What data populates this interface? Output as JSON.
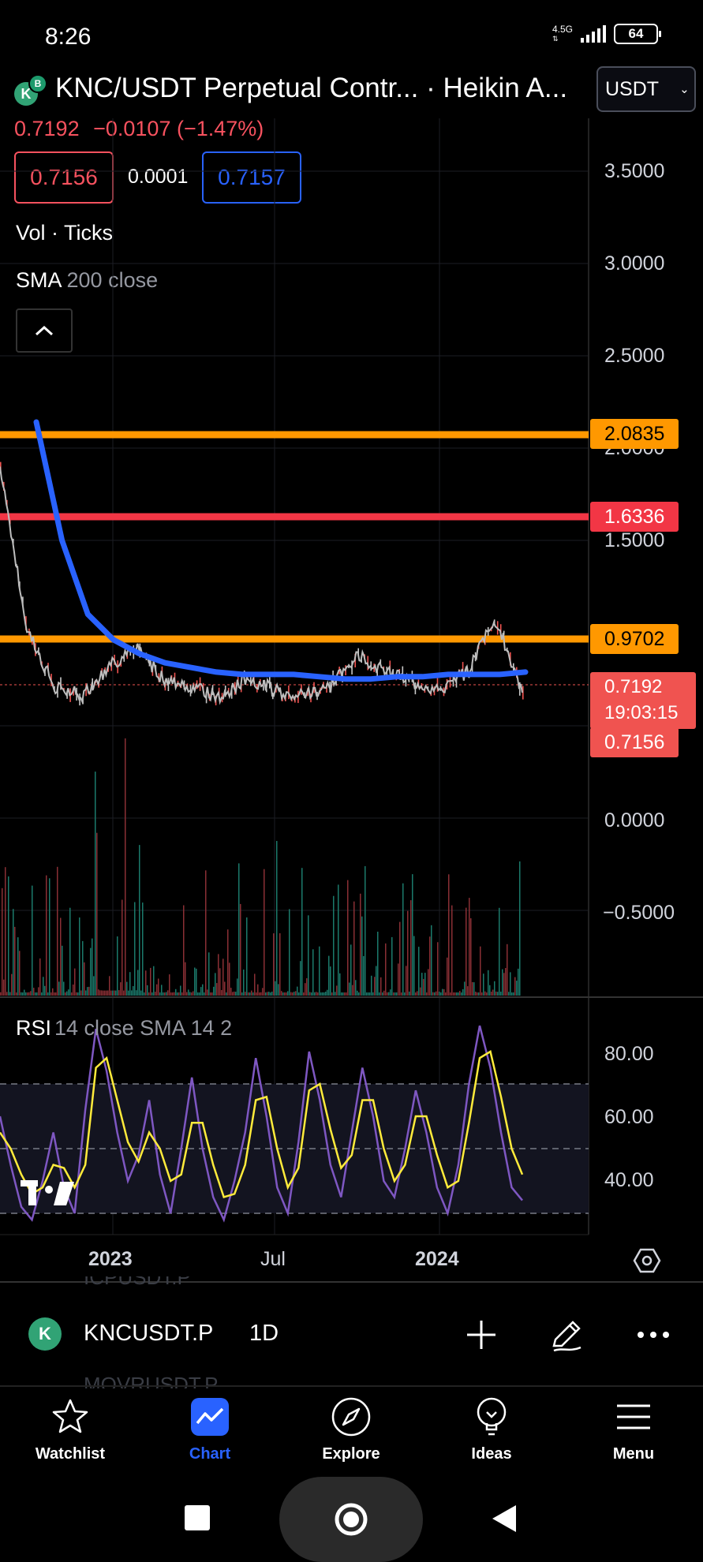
{
  "status_bar": {
    "time": "8:26",
    "network": "4.5G",
    "battery": "64"
  },
  "header": {
    "title": "KNC/USDT Perpetual Contr...  · Heikin A...",
    "currency": "USDT",
    "last_price": "0.7192",
    "change": "−0.0107 (−1.47%)",
    "bid": "0.7156",
    "spread": "0.0001",
    "ask": "0.7157"
  },
  "indicators": {
    "vol_label": "Vol · Ticks",
    "sma_name": "SMA",
    "sma_params": "200 close"
  },
  "price_scale": {
    "ticks": [
      "3.5000",
      "3.0000",
      "2.5000",
      "2.0000",
      "1.5000",
      "0.0000",
      "−0.5000"
    ],
    "level_badges": [
      {
        "value": "2.0835",
        "color": "#ff9800"
      },
      {
        "value": "1.6336",
        "color": "#f23645"
      },
      {
        "value": "0.9702",
        "color": "#ff9800"
      }
    ],
    "current": {
      "price": "0.7192",
      "countdown": "19:03:15"
    },
    "bid_badge": "0.7156"
  },
  "rsi": {
    "name": "RSI",
    "params": "14 close SMA 14 2",
    "ticks": [
      "80.00",
      "60.00",
      "40.00"
    ]
  },
  "time_axis": [
    "2023",
    "Jul",
    "2024"
  ],
  "chart_data": {
    "type": "line",
    "ylim": [
      0.6,
      2.1
    ],
    "horizontal_levels": [
      {
        "value": 2.0835,
        "color": "#ff9800"
      },
      {
        "value": 1.6336,
        "color": "#f23645"
      },
      {
        "value": 0.9702,
        "color": "#ff9800"
      }
    ],
    "x": [
      "2022-10",
      "2022-11",
      "2022-12",
      "2023-01",
      "2023-02",
      "2023-03",
      "2023-04",
      "2023-05",
      "2023-06",
      "2023-07",
      "2023-08",
      "2023-09",
      "2023-10",
      "2023-11",
      "2023-12",
      "2024-01",
      "2024-02",
      "2024-03",
      "2024-04",
      "2024-05"
    ],
    "series": [
      {
        "values": [
          1.9,
          1.0,
          0.75,
          0.72,
          0.85,
          0.92,
          0.78,
          0.76,
          0.7,
          0.8,
          0.74,
          0.72,
          0.76,
          0.9,
          0.82,
          0.78,
          0.74,
          0.82,
          1.07,
          0.72
        ],
        "color": "#c8c8c8"
      },
      {
        "name": "SMA 200 close",
        "values": [
          2.2,
          1.5,
          1.1,
          0.96,
          0.9,
          0.86,
          0.84,
          0.82,
          0.81,
          0.81,
          0.81,
          0.8,
          0.79,
          0.79,
          0.8,
          0.8,
          0.81,
          0.81,
          0.81,
          0.82
        ],
        "color": "#2962ff"
      }
    ],
    "rsi": {
      "ylim": [
        25,
        90
      ],
      "bands": [
        70,
        50,
        30
      ],
      "rsi_values": [
        60,
        45,
        32,
        28,
        40,
        55,
        38,
        30,
        62,
        87,
        74,
        55,
        40,
        48,
        65,
        42,
        30,
        50,
        72,
        50,
        35,
        28,
        40,
        55,
        78,
        60,
        38,
        30,
        52,
        80,
        65,
        45,
        35,
        55,
        75,
        60,
        40,
        35,
        50,
        68,
        55,
        38,
        30,
        45,
        70,
        88,
        75,
        55,
        38,
        34
      ],
      "sma_values": [
        55,
        50,
        42,
        36,
        38,
        45,
        44,
        38,
        45,
        75,
        78,
        65,
        52,
        46,
        55,
        50,
        40,
        42,
        58,
        58,
        45,
        35,
        36,
        45,
        65,
        66,
        50,
        38,
        44,
        68,
        70,
        56,
        44,
        48,
        65,
        65,
        50,
        40,
        45,
        60,
        60,
        48,
        38,
        40,
        58,
        78,
        80,
        66,
        50,
        42
      ]
    }
  },
  "symbol_bar": {
    "prev_symbol": "ICPUSDT.P",
    "symbol": "KNCUSDT.P",
    "timeframe": "1D",
    "next_symbol": "MOVRUSDT.P"
  },
  "nav": [
    {
      "label": "Watchlist",
      "icon": "star-icon"
    },
    {
      "label": "Chart",
      "icon": "chart-icon"
    },
    {
      "label": "Explore",
      "icon": "compass-icon"
    },
    {
      "label": "Ideas",
      "icon": "lightbulb-icon"
    },
    {
      "label": "Menu",
      "icon": "hamburger-icon"
    }
  ],
  "colors": {
    "accent": "#2962ff",
    "down": "#f7525f",
    "up": "#089981",
    "level_orange": "#ff9800",
    "level_red": "#f23645"
  }
}
